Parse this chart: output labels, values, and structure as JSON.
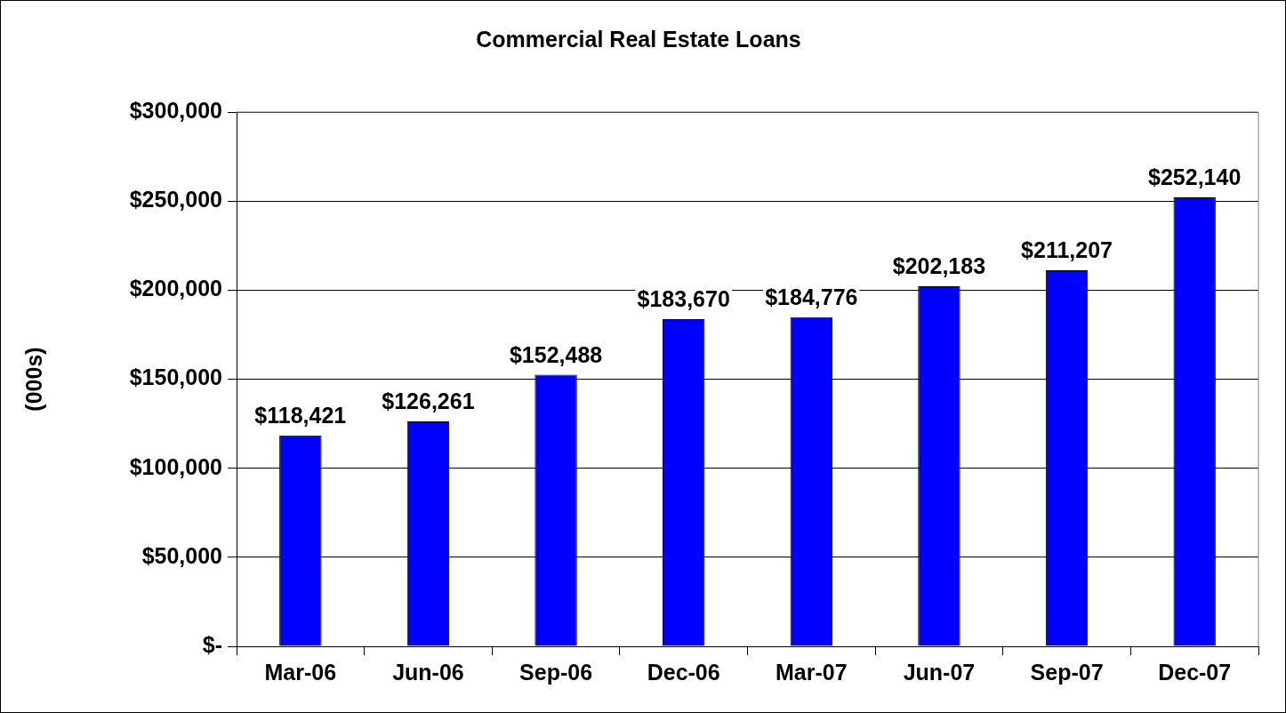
{
  "chart_data": {
    "type": "bar",
    "title": "Commercial Real Estate Loans",
    "ylabel": "(000s)",
    "categories": [
      "Mar-06",
      "Jun-06",
      "Sep-06",
      "Dec-06",
      "Mar-07",
      "Jun-07",
      "Sep-07",
      "Dec-07"
    ],
    "values": [
      118421,
      126261,
      152488,
      183670,
      184776,
      202183,
      211207,
      252140
    ],
    "value_labels": [
      "$118,421",
      "$126,261",
      "$152,488",
      "$183,670",
      "$184,776",
      "$202,183",
      "$211,207",
      "$252,140"
    ],
    "color": "#0000ff",
    "ylim": [
      0,
      300000
    ],
    "yticks": [
      {
        "value": 0,
        "label": "$-"
      },
      {
        "value": 50000,
        "label": "$50,000"
      },
      {
        "value": 100000,
        "label": "$100,000"
      },
      {
        "value": 150000,
        "label": "$150,000"
      },
      {
        "value": 200000,
        "label": "$200,000"
      },
      {
        "value": 250000,
        "label": "$250,000"
      },
      {
        "value": 300000,
        "label": "$300,000"
      }
    ],
    "grid": "y",
    "legend": false
  }
}
